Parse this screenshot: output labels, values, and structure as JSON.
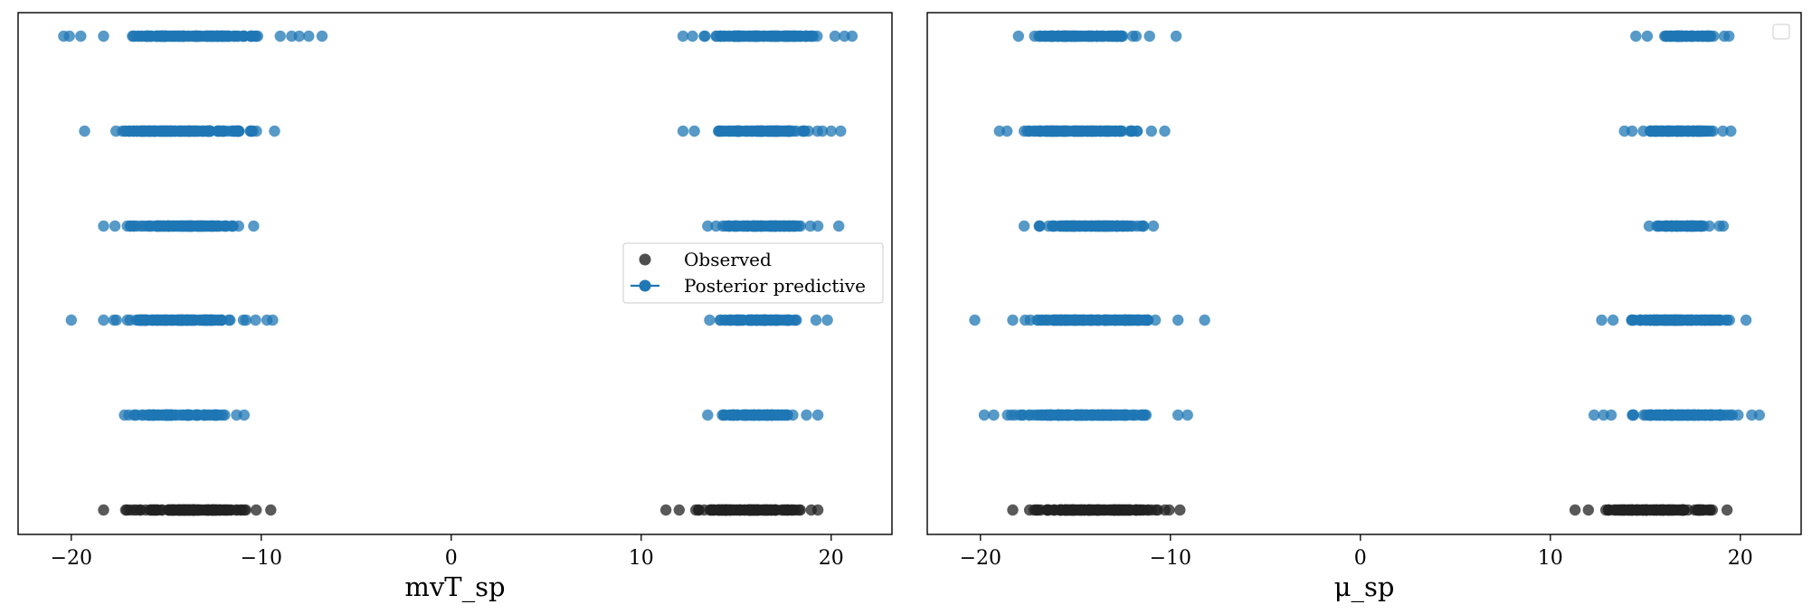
{
  "chart_data": [
    {
      "type": "scatter",
      "title": "",
      "xlabel": "mvT_sp",
      "ylabel": "",
      "xlim": [
        -22.8,
        23.2
      ],
      "xticks": [
        -20,
        -10,
        0,
        10,
        20
      ],
      "xtick_labels": [
        "−20",
        "−10",
        "0",
        "10",
        "20"
      ],
      "y_ticks_shown": false,
      "grid": false,
      "legend": {
        "placement": "center-right",
        "entries": [
          {
            "label": "Observed",
            "marker": "circle",
            "color": "#222222"
          },
          {
            "label": "Posterior predictive",
            "marker": "circle-line",
            "color": "#1f77b4"
          }
        ]
      },
      "series": [
        {
          "name": "Observed",
          "color": "#222222",
          "row": 0,
          "clusters": [
            {
              "range": [
                -18.3,
                -9.5
              ],
              "outliers": []
            },
            {
              "range": [
                12.0,
                19.3
              ],
              "outliers": [
                11.3
              ]
            }
          ]
        },
        {
          "name": "Posterior predictive",
          "color": "#1f77b4",
          "rows": [
            {
              "row": 1,
              "clusters": [
                {
                  "range": [
                    -17.2,
                    -11.3
                  ],
                  "outliers": [
                    -10.9
                  ]
                },
                {
                  "range": [
                    13.5,
                    18.7
                  ],
                  "outliers": [
                    19.3
                  ]
                }
              ]
            },
            {
              "row": 2,
              "clusters": [
                {
                  "range": [
                    -18.3,
                    -10.3
                  ],
                  "outliers": [
                    -20.0,
                    -9.7,
                    -9.4
                  ]
                },
                {
                  "range": [
                    13.6,
                    19.2
                  ],
                  "outliers": [
                    19.8
                  ]
                }
              ]
            },
            {
              "row": 3,
              "clusters": [
                {
                  "range": [
                    -17.7,
                    -10.4
                  ],
                  "outliers": [
                    -18.3
                  ]
                },
                {
                  "range": [
                    13.5,
                    19.3
                  ],
                  "outliers": [
                    20.4
                  ]
                }
              ]
            },
            {
              "row": 4,
              "clusters": [
                {
                  "range": [
                    -19.3,
                    -9.3
                  ],
                  "outliers": []
                },
                {
                  "range": [
                    12.8,
                    20.0
                  ],
                  "outliers": [
                    12.2,
                    20.5
                  ]
                }
              ]
            },
            {
              "row": 5,
              "clusters": [
                {
                  "range": [
                    -18.3,
                    -9.0
                  ],
                  "outliers": [
                    -20.4,
                    -20.1,
                    -19.5,
                    -8.4,
                    -8.0,
                    -7.5,
                    -6.8
                  ]
                },
                {
                  "range": [
                    12.7,
                    20.2
                  ],
                  "outliers": [
                    12.2,
                    20.7,
                    21.1
                  ]
                }
              ]
            }
          ]
        }
      ]
    },
    {
      "type": "scatter",
      "title": "",
      "xlabel": "μ_sp",
      "ylabel": "",
      "xlim": [
        -22.8,
        23.2
      ],
      "xticks": [
        -20,
        -10,
        0,
        10,
        20
      ],
      "xtick_labels": [
        "−20",
        "−10",
        "0",
        "10",
        "20"
      ],
      "y_ticks_shown": false,
      "grid": false,
      "legend": {
        "placement": "top-right",
        "entries": []
      },
      "series": [
        {
          "name": "Observed",
          "color": "#222222",
          "row": 0,
          "clusters": [
            {
              "range": [
                -18.3,
                -9.5
              ],
              "outliers": []
            },
            {
              "range": [
                12.0,
                19.3
              ],
              "outliers": [
                11.3
              ]
            }
          ]
        },
        {
          "name": "Posterior predictive",
          "color": "#1f77b4",
          "rows": [
            {
              "row": 1,
              "clusters": [
                {
                  "range": [
                    -19.3,
                    -9.6
                  ],
                  "outliers": [
                    -19.8,
                    -9.1
                  ]
                },
                {
                  "range": [
                    13.2,
                    20.6
                  ],
                  "outliers": [
                    12.3,
                    12.8,
                    21.0
                  ]
                }
              ]
            },
            {
              "row": 2,
              "clusters": [
                {
                  "range": [
                    -18.3,
                    -9.6
                  ],
                  "outliers": [
                    -20.3,
                    -8.2
                  ]
                },
                {
                  "range": [
                    13.3,
                    20.3
                  ],
                  "outliers": [
                    12.7
                  ]
                }
              ]
            },
            {
              "row": 3,
              "clusters": [
                {
                  "range": [
                    -17.7,
                    -10.9
                  ],
                  "outliers": []
                },
                {
                  "range": [
                    15.2,
                    18.9
                  ],
                  "outliers": [
                    19.1
                  ]
                }
              ]
            },
            {
              "row": 4,
              "clusters": [
                {
                  "range": [
                    -18.6,
                    -11.0
                  ],
                  "outliers": [
                    -10.3,
                    -19.0
                  ]
                },
                {
                  "range": [
                    14.3,
                    19.5
                  ],
                  "outliers": [
                    13.9
                  ]
                }
              ]
            },
            {
              "row": 5,
              "clusters": [
                {
                  "range": [
                    -18.0,
                    -11.1
                  ],
                  "outliers": [
                    -9.7
                  ]
                },
                {
                  "range": [
                    15.1,
                    19.4
                  ],
                  "outliers": [
                    14.5
                  ]
                }
              ]
            }
          ]
        }
      ]
    }
  ]
}
